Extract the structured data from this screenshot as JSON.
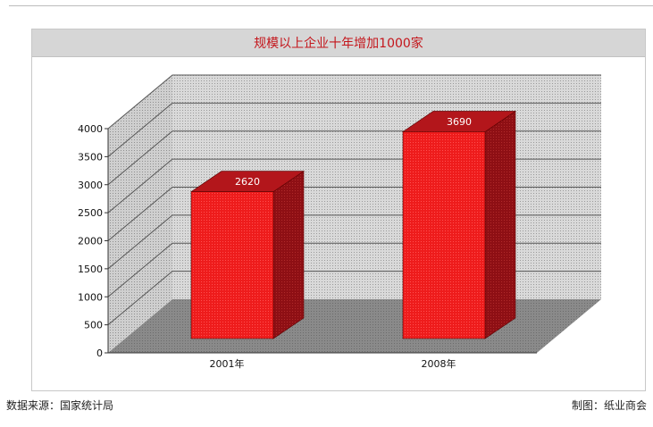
{
  "chart_data": {
    "type": "bar",
    "title": "规模以上企业十年增加1000家",
    "categories": [
      "2001年",
      "2008年"
    ],
    "values": [
      2620,
      3690
    ],
    "data_labels": [
      "2620",
      "3690"
    ],
    "y_ticks": [
      0,
      500,
      1000,
      1500,
      2000,
      2500,
      3000,
      3500,
      4000
    ],
    "ylim": [
      0,
      4000
    ],
    "xlabel": "",
    "ylabel": "",
    "grid": true,
    "style": "3d-bar",
    "colors": {
      "bar_front": "#ee1c1c",
      "bar_top": "#b3161b",
      "bar_side": "#8e0f14",
      "wall": "#c9c9c9",
      "floor": "#8c8c8c",
      "grid_line": "#555555",
      "title_text": "#c4161c",
      "label_text": "#ffffff"
    }
  },
  "footer": {
    "source": "数据来源：国家统计局",
    "credit": "制图：纸业商会"
  }
}
